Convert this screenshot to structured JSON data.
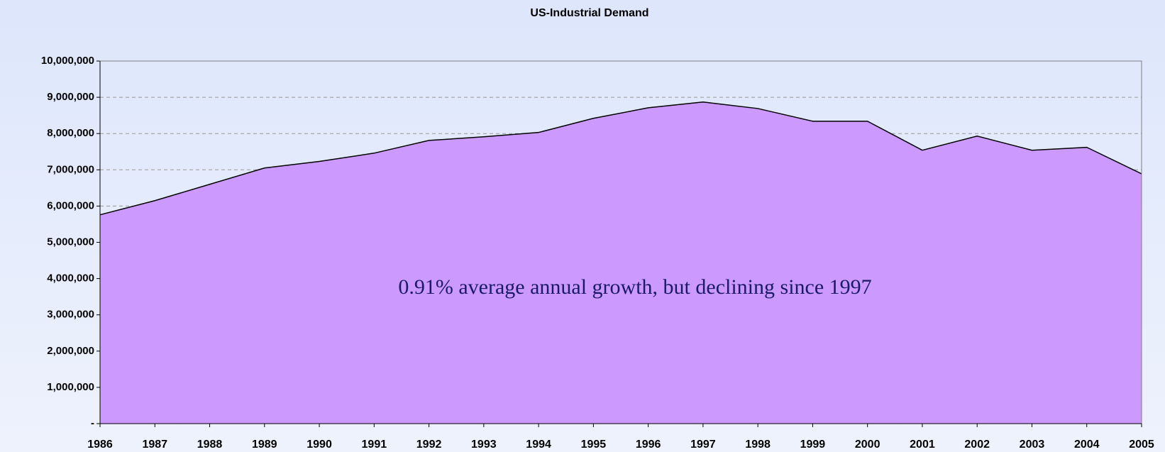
{
  "chart_data": {
    "type": "area",
    "title": "US-Industrial Demand",
    "annotation": "0.91% average annual growth, but declining since 1997",
    "categories": [
      "1986",
      "1987",
      "1988",
      "1989",
      "1990",
      "1991",
      "1992",
      "1993",
      "1994",
      "1995",
      "1996",
      "1997",
      "1998",
      "1999",
      "2000",
      "2001",
      "2002",
      "2003",
      "2004",
      "2005"
    ],
    "values": [
      5760000,
      6150000,
      6600000,
      7050000,
      7230000,
      7460000,
      7810000,
      7910000,
      8030000,
      8420000,
      8710000,
      8870000,
      8690000,
      8340000,
      8340000,
      7540000,
      7930000,
      7540000,
      7620000,
      6890000
    ],
    "color": "#cc99ff",
    "ylim": [
      0,
      10000000
    ],
    "yticks": [
      {
        "value": 0,
        "label": "-"
      },
      {
        "value": 1000000,
        "label": "1,000,000"
      },
      {
        "value": 2000000,
        "label": "2,000,000"
      },
      {
        "value": 3000000,
        "label": "3,000,000"
      },
      {
        "value": 4000000,
        "label": "4,000,000"
      },
      {
        "value": 5000000,
        "label": "5,000,000"
      },
      {
        "value": 6000000,
        "label": "6,000,000"
      },
      {
        "value": 7000000,
        "label": "7,000,000"
      },
      {
        "value": 8000000,
        "label": "8,000,000"
      },
      {
        "value": 9000000,
        "label": "9,000,000"
      },
      {
        "value": 10000000,
        "label": "10,000,000"
      }
    ],
    "grid": true
  }
}
